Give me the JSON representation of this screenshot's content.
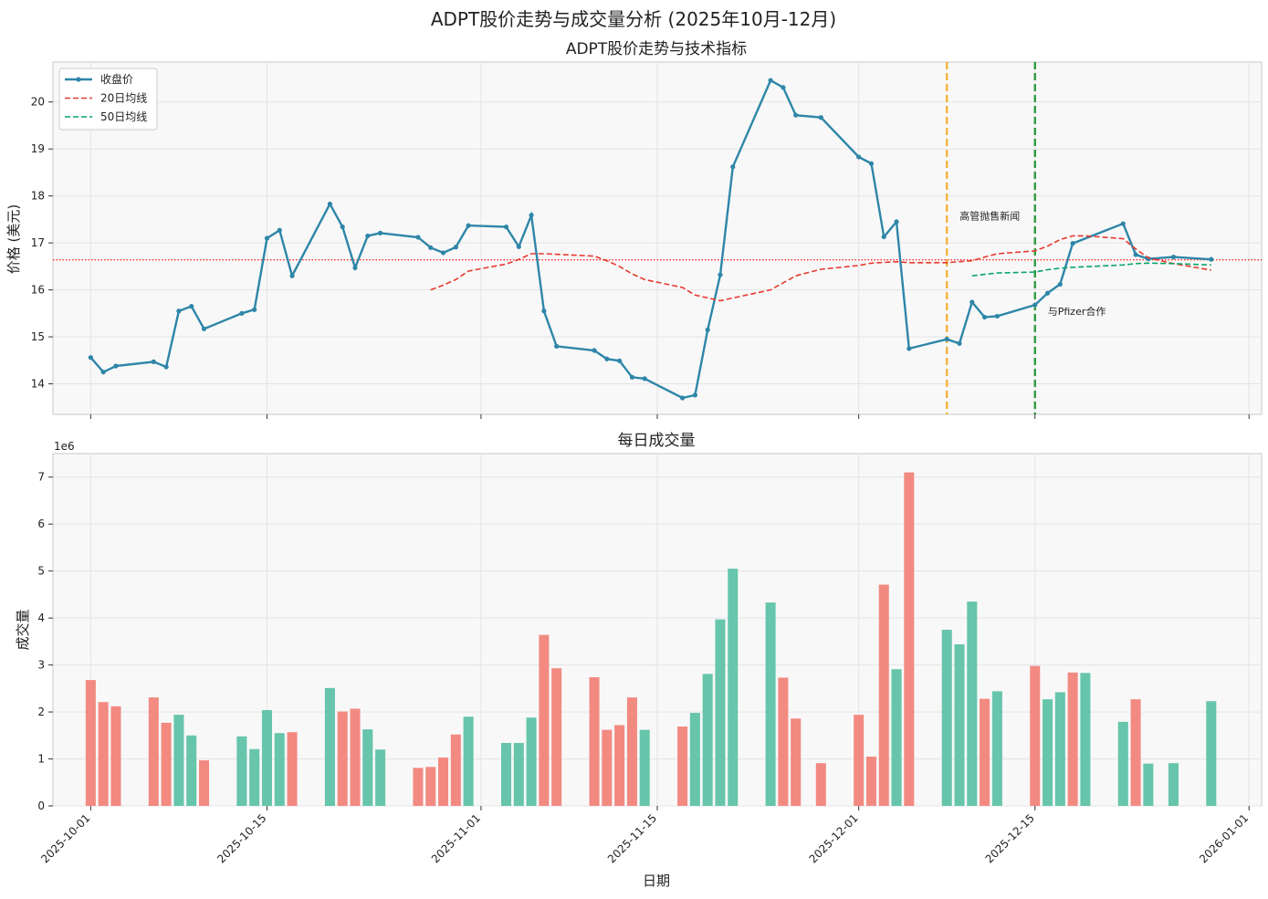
{
  "figure_title": "ADPT股价走势与成交量分析 (2025年10月-12月)",
  "chart_data": [
    {
      "type": "line",
      "title": "ADPT股价走势与技术指标",
      "xlabel": "",
      "ylabel": "价格 (美元)",
      "xlim": [
        "2025-09-28",
        "2026-01-02"
      ],
      "ylim": [
        13.35,
        20.85
      ],
      "yticks": [
        14,
        15,
        16,
        17,
        18,
        19,
        20
      ],
      "grid": true,
      "legend": "top-left",
      "reference_line": {
        "value": 16.64,
        "color": "#ff0000",
        "style": "dotted"
      },
      "series": [
        {
          "name": "收盘价",
          "color": "#2e86a8",
          "style": "solid-marker",
          "points": [
            [
              "2025-10-01",
              14.56
            ],
            [
              "2025-10-02",
              14.25
            ],
            [
              "2025-10-03",
              14.38
            ],
            [
              "2025-10-06",
              14.47
            ],
            [
              "2025-10-07",
              14.36
            ],
            [
              "2025-10-08",
              15.55
            ],
            [
              "2025-10-09",
              15.65
            ],
            [
              "2025-10-10",
              15.17
            ],
            [
              "2025-10-13",
              15.5
            ],
            [
              "2025-10-14",
              15.58
            ],
            [
              "2025-10-15",
              17.1
            ],
            [
              "2025-10-16",
              17.27
            ],
            [
              "2025-10-17",
              16.3
            ],
            [
              "2025-10-20",
              17.83
            ],
            [
              "2025-10-21",
              17.34
            ],
            [
              "2025-10-22",
              16.47
            ],
            [
              "2025-10-23",
              17.15
            ],
            [
              "2025-10-24",
              17.21
            ],
            [
              "2025-10-27",
              17.12
            ],
            [
              "2025-10-28",
              16.9
            ],
            [
              "2025-10-29",
              16.79
            ],
            [
              "2025-10-30",
              16.91
            ],
            [
              "2025-10-31",
              17.37
            ],
            [
              "2025-11-03",
              17.34
            ],
            [
              "2025-11-04",
              16.92
            ],
            [
              "2025-11-05",
              17.59
            ],
            [
              "2025-11-06",
              15.55
            ],
            [
              "2025-11-07",
              14.8
            ],
            [
              "2025-11-10",
              14.71
            ],
            [
              "2025-11-11",
              14.53
            ],
            [
              "2025-11-12",
              14.49
            ],
            [
              "2025-11-13",
              14.14
            ],
            [
              "2025-11-14",
              14.11
            ],
            [
              "2025-11-17",
              13.7
            ],
            [
              "2025-11-18",
              13.76
            ],
            [
              "2025-11-19",
              15.15
            ],
            [
              "2025-11-20",
              16.32
            ],
            [
              "2025-11-21",
              18.62
            ],
            [
              "2025-11-24",
              20.46
            ],
            [
              "2025-11-25",
              20.31
            ],
            [
              "2025-11-26",
              19.72
            ],
            [
              "2025-11-28",
              19.67
            ],
            [
              "2025-12-01",
              18.83
            ],
            [
              "2025-12-02",
              18.69
            ],
            [
              "2025-12-03",
              17.13
            ],
            [
              "2025-12-04",
              17.45
            ],
            [
              "2025-12-05",
              14.75
            ],
            [
              "2025-12-08",
              14.95
            ],
            [
              "2025-12-09",
              14.86
            ],
            [
              "2025-12-10",
              15.74
            ],
            [
              "2025-12-11",
              15.42
            ],
            [
              "2025-12-12",
              15.44
            ],
            [
              "2025-12-15",
              15.68
            ],
            [
              "2025-12-16",
              15.93
            ],
            [
              "2025-12-17",
              16.12
            ],
            [
              "2025-12-18",
              16.99
            ],
            [
              "2025-12-22",
              17.41
            ],
            [
              "2025-12-23",
              16.75
            ],
            [
              "2025-12-24",
              16.66
            ],
            [
              "2025-12-26",
              16.7
            ],
            [
              "2025-12-29",
              16.65
            ]
          ]
        },
        {
          "name": "20日均线",
          "color": "#e8392f",
          "style": "dashed",
          "points": [
            [
              "2025-10-28",
              16.0
            ],
            [
              "2025-10-29",
              16.1
            ],
            [
              "2025-10-30",
              16.22
            ],
            [
              "2025-10-31",
              16.4
            ],
            [
              "2025-11-03",
              16.55
            ],
            [
              "2025-11-04",
              16.65
            ],
            [
              "2025-11-05",
              16.77
            ],
            [
              "2025-11-06",
              16.77
            ],
            [
              "2025-11-10",
              16.72
            ],
            [
              "2025-11-11",
              16.62
            ],
            [
              "2025-11-12",
              16.5
            ],
            [
              "2025-11-13",
              16.34
            ],
            [
              "2025-11-14",
              16.22
            ],
            [
              "2025-11-17",
              16.05
            ],
            [
              "2025-11-18",
              15.89
            ],
            [
              "2025-11-20",
              15.77
            ],
            [
              "2025-11-24",
              16.0
            ],
            [
              "2025-11-25",
              16.15
            ],
            [
              "2025-11-26",
              16.3
            ],
            [
              "2025-11-28",
              16.44
            ],
            [
              "2025-12-01",
              16.52
            ],
            [
              "2025-12-02",
              16.57
            ],
            [
              "2025-12-04",
              16.6
            ],
            [
              "2025-12-05",
              16.58
            ],
            [
              "2025-12-08",
              16.58
            ],
            [
              "2025-12-09",
              16.6
            ],
            [
              "2025-12-10",
              16.62
            ],
            [
              "2025-12-11",
              16.7
            ],
            [
              "2025-12-12",
              16.77
            ],
            [
              "2025-12-15",
              16.83
            ],
            [
              "2025-12-16",
              16.93
            ],
            [
              "2025-12-17",
              17.07
            ],
            [
              "2025-12-18",
              17.15
            ],
            [
              "2025-12-19",
              17.15
            ],
            [
              "2025-12-22",
              17.09
            ],
            [
              "2025-12-23",
              16.87
            ],
            [
              "2025-12-24",
              16.68
            ],
            [
              "2025-12-26",
              16.56
            ],
            [
              "2025-12-29",
              16.42
            ]
          ]
        },
        {
          "name": "50日均线",
          "color": "#0aa36a",
          "style": "dashed",
          "points": [
            [
              "2025-12-10",
              16.3
            ],
            [
              "2025-12-11",
              16.33
            ],
            [
              "2025-12-12",
              16.36
            ],
            [
              "2025-12-15",
              16.38
            ],
            [
              "2025-12-16",
              16.43
            ],
            [
              "2025-12-17",
              16.46
            ],
            [
              "2025-12-18",
              16.48
            ],
            [
              "2025-12-22",
              16.53
            ],
            [
              "2025-12-23",
              16.56
            ],
            [
              "2025-12-24",
              16.57
            ],
            [
              "2025-12-26",
              16.56
            ],
            [
              "2025-12-29",
              16.53
            ]
          ]
        }
      ],
      "events": [
        {
          "date": "2025-12-08",
          "label": "高管抛售新闻",
          "color": "#f5b43d",
          "label_value": 17.58
        },
        {
          "date": "2025-12-15",
          "label": "与Pfizer合作",
          "color": "#2f9b3f",
          "label_value": 15.55
        }
      ]
    },
    {
      "type": "bar",
      "title": "每日成交量",
      "xlabel": "日期",
      "ylabel": "成交量",
      "scale_note": "1e6",
      "xlim": [
        "2025-09-28",
        "2026-01-02"
      ],
      "ylim": [
        0,
        7.5
      ],
      "yticks": [
        0,
        1,
        2,
        3,
        4,
        5,
        6,
        7
      ],
      "xticks": [
        "2025-10-01",
        "2025-10-15",
        "2025-11-01",
        "2025-11-15",
        "2025-12-01",
        "2025-12-15",
        "2026-01-01"
      ],
      "grid": true,
      "up_color": "#66c5ab",
      "down_color": "#f28a82",
      "bars": [
        [
          "2025-10-01",
          2.68,
          "down"
        ],
        [
          "2025-10-02",
          2.21,
          "down"
        ],
        [
          "2025-10-03",
          2.12,
          "down"
        ],
        [
          "2025-10-06",
          2.31,
          "down"
        ],
        [
          "2025-10-07",
          1.77,
          "down"
        ],
        [
          "2025-10-08",
          1.94,
          "up"
        ],
        [
          "2025-10-09",
          1.5,
          "up"
        ],
        [
          "2025-10-10",
          0.97,
          "down"
        ],
        [
          "2025-10-13",
          1.48,
          "up"
        ],
        [
          "2025-10-14",
          1.21,
          "up"
        ],
        [
          "2025-10-15",
          2.04,
          "up"
        ],
        [
          "2025-10-16",
          1.55,
          "up"
        ],
        [
          "2025-10-17",
          1.57,
          "down"
        ],
        [
          "2025-10-20",
          2.51,
          "up"
        ],
        [
          "2025-10-21",
          2.01,
          "down"
        ],
        [
          "2025-10-22",
          2.07,
          "down"
        ],
        [
          "2025-10-23",
          1.63,
          "up"
        ],
        [
          "2025-10-24",
          1.2,
          "up"
        ],
        [
          "2025-10-27",
          0.81,
          "down"
        ],
        [
          "2025-10-28",
          0.83,
          "down"
        ],
        [
          "2025-10-29",
          1.03,
          "down"
        ],
        [
          "2025-10-30",
          1.52,
          "down"
        ],
        [
          "2025-10-31",
          1.9,
          "up"
        ],
        [
          "2025-11-03",
          1.34,
          "up"
        ],
        [
          "2025-11-04",
          1.34,
          "up"
        ],
        [
          "2025-11-05",
          1.88,
          "up"
        ],
        [
          "2025-11-06",
          3.64,
          "down"
        ],
        [
          "2025-11-07",
          2.93,
          "down"
        ],
        [
          "2025-11-10",
          2.74,
          "down"
        ],
        [
          "2025-11-11",
          1.62,
          "down"
        ],
        [
          "2025-11-12",
          1.72,
          "down"
        ],
        [
          "2025-11-13",
          2.31,
          "down"
        ],
        [
          "2025-11-14",
          1.62,
          "up"
        ],
        [
          "2025-11-17",
          1.69,
          "down"
        ],
        [
          "2025-11-18",
          1.98,
          "up"
        ],
        [
          "2025-11-19",
          2.81,
          "up"
        ],
        [
          "2025-11-20",
          3.97,
          "up"
        ],
        [
          "2025-11-21",
          5.05,
          "up"
        ],
        [
          "2025-11-24",
          4.33,
          "up"
        ],
        [
          "2025-11-25",
          2.73,
          "down"
        ],
        [
          "2025-11-26",
          1.86,
          "down"
        ],
        [
          "2025-11-28",
          0.91,
          "down"
        ],
        [
          "2025-12-01",
          1.94,
          "down"
        ],
        [
          "2025-12-02",
          1.05,
          "down"
        ],
        [
          "2025-12-03",
          4.71,
          "down"
        ],
        [
          "2025-12-04",
          2.91,
          "up"
        ],
        [
          "2025-12-05",
          7.1,
          "down"
        ],
        [
          "2025-12-08",
          3.75,
          "up"
        ],
        [
          "2025-12-09",
          3.44,
          "up"
        ],
        [
          "2025-12-10",
          4.35,
          "up"
        ],
        [
          "2025-12-11",
          2.28,
          "down"
        ],
        [
          "2025-12-12",
          2.44,
          "up"
        ],
        [
          "2025-12-15",
          2.98,
          "down"
        ],
        [
          "2025-12-16",
          2.27,
          "up"
        ],
        [
          "2025-12-17",
          2.42,
          "up"
        ],
        [
          "2025-12-18",
          2.84,
          "down"
        ],
        [
          "2025-12-19",
          2.83,
          "up"
        ],
        [
          "2025-12-22",
          1.79,
          "up"
        ],
        [
          "2025-12-23",
          2.27,
          "down"
        ],
        [
          "2025-12-24",
          0.9,
          "up"
        ],
        [
          "2025-12-26",
          0.91,
          "up"
        ],
        [
          "2025-12-29",
          2.23,
          "up"
        ]
      ]
    }
  ]
}
